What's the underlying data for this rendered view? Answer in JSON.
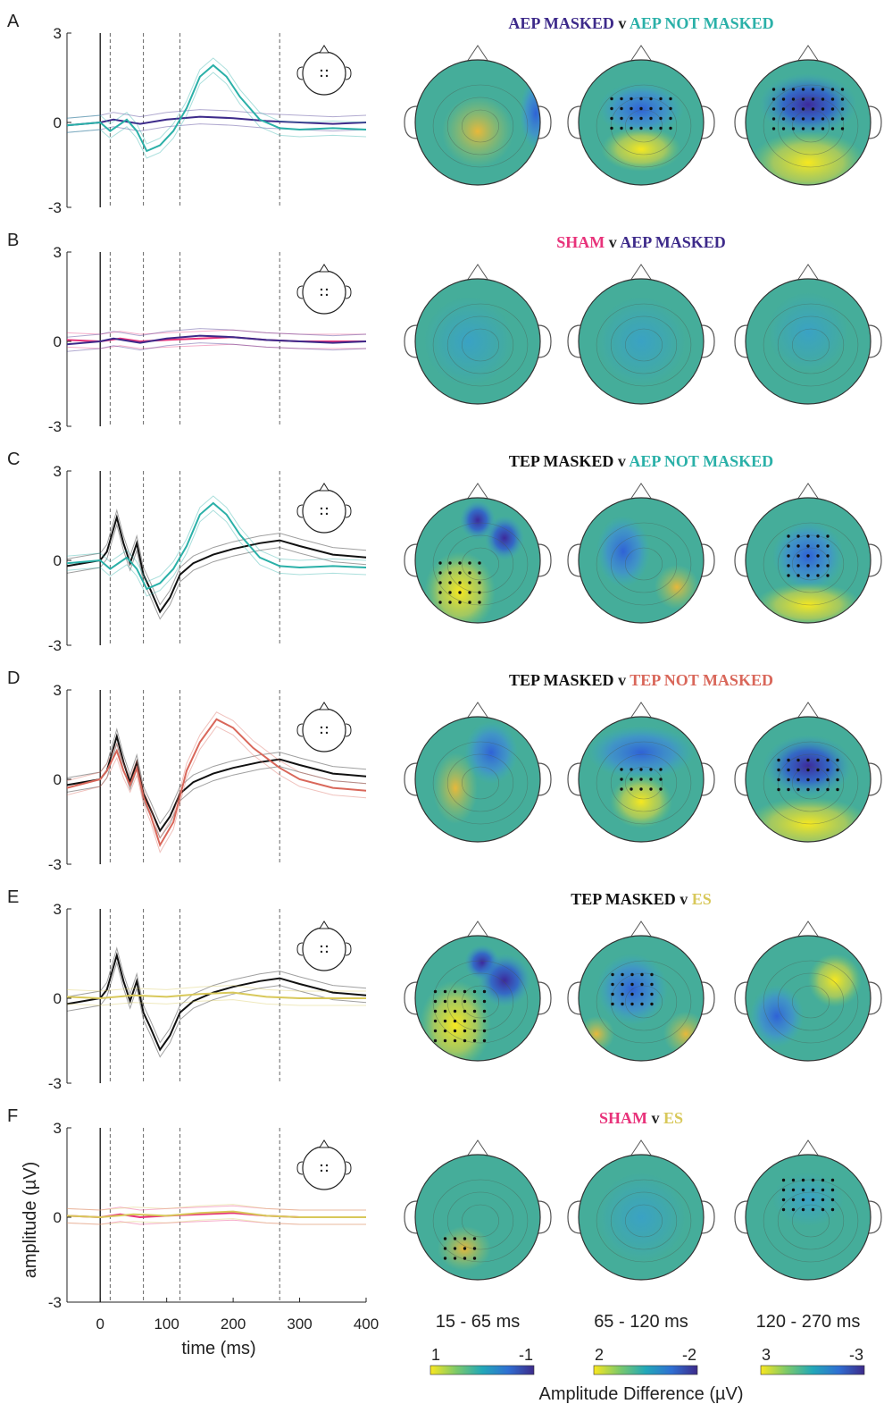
{
  "colors": {
    "aep_masked": "#3d2a8a",
    "aep_not_masked": "#2ab0a8",
    "sham": "#e8327a",
    "tep_masked": "#111111",
    "tep_not_masked": "#d9675a",
    "es": "#d8c85a",
    "v": "#222222"
  },
  "time_windows": [
    "15 - 65 ms",
    "65 - 120 ms",
    "120 - 270 ms"
  ],
  "colorbars": [
    {
      "max": "1",
      "min": "-1"
    },
    {
      "max": "2",
      "min": "-2"
    },
    {
      "max": "3",
      "min": "-3"
    }
  ],
  "colorbar_label": "Amplitude Difference (µV)",
  "axis": {
    "xlabel": "time (ms)",
    "ylabel": "amplitude (µV)",
    "xticks": [
      "0",
      "100",
      "200",
      "300",
      "400"
    ],
    "yticks": [
      "3",
      "0",
      "-3"
    ]
  },
  "panels": [
    {
      "letter": "A",
      "title": [
        {
          "text": "AEP MASKED",
          "color": "aep_masked"
        },
        {
          "text": " v ",
          "color": "v"
        },
        {
          "text": "AEP NOT MASKED",
          "color": "aep_not_masked"
        }
      ],
      "series": [
        "aep_masked",
        "aep_not_masked"
      ]
    },
    {
      "letter": "B",
      "title": [
        {
          "text": "SHAM",
          "color": "sham"
        },
        {
          "text": " v ",
          "color": "v"
        },
        {
          "text": "AEP MASKED",
          "color": "aep_masked"
        }
      ],
      "series": [
        "sham",
        "aep_masked"
      ]
    },
    {
      "letter": "C",
      "title": [
        {
          "text": "TEP MASKED",
          "color": "tep_masked"
        },
        {
          "text": " v ",
          "color": "v"
        },
        {
          "text": "AEP NOT MASKED",
          "color": "aep_not_masked"
        }
      ],
      "series": [
        "tep_masked",
        "aep_not_masked"
      ]
    },
    {
      "letter": "D",
      "title": [
        {
          "text": "TEP MASKED",
          "color": "tep_masked"
        },
        {
          "text": " v ",
          "color": "v"
        },
        {
          "text": "TEP NOT MASKED",
          "color": "tep_not_masked"
        }
      ],
      "series": [
        "tep_masked",
        "tep_not_masked"
      ]
    },
    {
      "letter": "E",
      "title": [
        {
          "text": "TEP MASKED",
          "color": "tep_masked"
        },
        {
          "text": " v ",
          "color": "v"
        },
        {
          "text": "ES",
          "color": "es"
        }
      ],
      "series": [
        "tep_masked",
        "es"
      ]
    },
    {
      "letter": "F",
      "title": [
        {
          "text": "SHAM",
          "color": "sham"
        },
        {
          "text": " v ",
          "color": "v"
        },
        {
          "text": "ES",
          "color": "es"
        }
      ],
      "series": [
        "sham",
        "es"
      ]
    }
  ],
  "chart_data": {
    "type": "line",
    "xlim": [
      -50,
      400
    ],
    "ylim": [
      -3,
      3
    ],
    "stimulus_time": 0,
    "window_boundaries": [
      15,
      65,
      120,
      270
    ],
    "waveforms": {
      "aep_masked": {
        "t": [
          -50,
          0,
          20,
          60,
          100,
          150,
          200,
          250,
          300,
          350,
          400
        ],
        "v": [
          -0.1,
          0,
          0.1,
          -0.05,
          0.1,
          0.2,
          0.15,
          0.05,
          0,
          -0.05,
          0
        ]
      },
      "aep_not_masked": {
        "t": [
          -50,
          0,
          15,
          40,
          55,
          70,
          90,
          110,
          130,
          150,
          170,
          190,
          210,
          240,
          270,
          300,
          350,
          400
        ],
        "v": [
          -0.1,
          0,
          -0.3,
          0.1,
          -0.3,
          -1.0,
          -0.8,
          -0.3,
          0.5,
          1.6,
          2.0,
          1.6,
          0.9,
          0.1,
          -0.2,
          -0.25,
          -0.2,
          -0.25
        ]
      },
      "sham": {
        "t": [
          -50,
          0,
          30,
          60,
          100,
          150,
          200,
          250,
          300,
          350,
          400
        ],
        "v": [
          0.05,
          0,
          0.1,
          0,
          0.05,
          0.1,
          0.15,
          0.05,
          0,
          0,
          0
        ]
      },
      "tep_masked": {
        "t": [
          -50,
          0,
          10,
          25,
          35,
          45,
          55,
          65,
          75,
          90,
          105,
          120,
          140,
          170,
          200,
          240,
          270,
          300,
          350,
          400
        ],
        "v": [
          -0.2,
          0,
          0.3,
          1.5,
          0.6,
          -0.1,
          0.6,
          -0.5,
          -1.0,
          -1.8,
          -1.3,
          -0.5,
          -0.1,
          0.2,
          0.4,
          0.6,
          0.7,
          0.5,
          0.2,
          0.1
        ]
      },
      "tep_not_masked": {
        "t": [
          -50,
          0,
          10,
          25,
          35,
          45,
          55,
          65,
          75,
          90,
          110,
          130,
          150,
          175,
          200,
          230,
          270,
          300,
          350,
          400
        ],
        "v": [
          -0.3,
          0,
          0.3,
          1.0,
          0.3,
          -0.2,
          0.4,
          -0.6,
          -1.2,
          -2.3,
          -1.5,
          0.3,
          1.3,
          2.1,
          1.8,
          1.1,
          0.4,
          0,
          -0.3,
          -0.4
        ]
      },
      "es": {
        "t": [
          -50,
          0,
          50,
          100,
          150,
          200,
          250,
          300,
          350,
          400
        ],
        "v": [
          0.05,
          0,
          0.1,
          0.05,
          0.15,
          0.2,
          0.05,
          0,
          0,
          0
        ]
      }
    },
    "topomap_windows": [
      "15 - 65 ms",
      "65 - 120 ms",
      "120 - 270 ms"
    ],
    "colorbar_limits_uV": [
      [
        1,
        -1
      ],
      [
        2,
        -2
      ],
      [
        3,
        -3
      ]
    ]
  }
}
